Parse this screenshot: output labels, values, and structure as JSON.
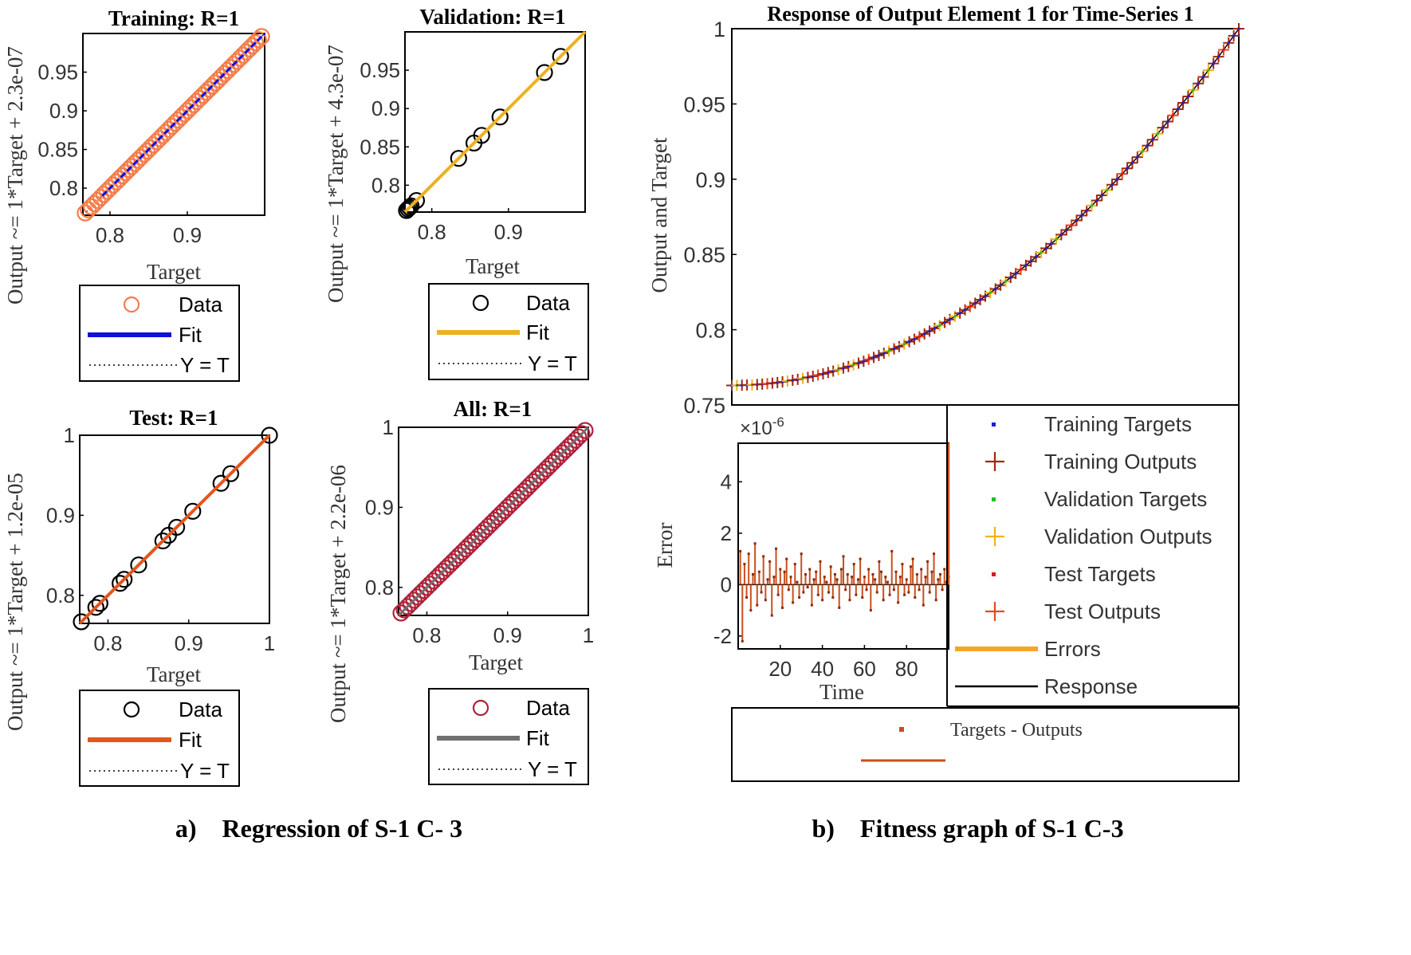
{
  "captions": {
    "left": "a) Regression of S-1 C- 3",
    "right": "b) Fitness graph of S-1 C-3"
  },
  "chart_data": [
    {
      "id": "training",
      "type": "scatter",
      "title": "Training: R=1",
      "xlabel": "Target",
      "ylabel": "Output ~= 1*Target + 2.3e-07",
      "xlim": [
        0.765,
        1.0
      ],
      "ylim": [
        0.765,
        1.0
      ],
      "xticks": [
        0.8,
        0.9
      ],
      "yticks": [
        0.8,
        0.85,
        0.9,
        0.95
      ],
      "data_color": "#f47c4a",
      "fit_color": "#1010d8",
      "legend": [
        "Data",
        "Fit",
        "Y = T"
      ]
    },
    {
      "id": "validation",
      "type": "scatter",
      "title": "Validation: R=1",
      "xlabel": "Target",
      "ylabel": "Output ~= 1*Target + 4.3e-07",
      "xlim": [
        0.765,
        1.0
      ],
      "ylim": [
        0.765,
        1.0
      ],
      "xticks": [
        0.8,
        0.9
      ],
      "yticks": [
        0.8,
        0.85,
        0.9,
        0.95
      ],
      "points": [
        0.767,
        0.769,
        0.771,
        0.773,
        0.78,
        0.835,
        0.855,
        0.865,
        0.889,
        0.947,
        0.968
      ],
      "data_color": "#000000",
      "fit_color": "#edb120",
      "legend": [
        "Data",
        "Fit",
        "Y = T"
      ]
    },
    {
      "id": "test",
      "type": "scatter",
      "title": "Test: R=1",
      "xlabel": "Target",
      "ylabel": "Output ~= 1*Target + 1.2e-05",
      "xlim": [
        0.765,
        1.0
      ],
      "ylim": [
        0.765,
        1.0
      ],
      "xticks": [
        0.8,
        0.9,
        1
      ],
      "yticks": [
        0.8,
        0.9,
        1
      ],
      "points": [
        0.767,
        0.785,
        0.79,
        0.815,
        0.82,
        0.838,
        0.868,
        0.875,
        0.885,
        0.905,
        0.94,
        0.952,
        1.0
      ],
      "data_color": "#000000",
      "fit_color": "#e2561c",
      "legend": [
        "Data",
        "Fit",
        "Y = T"
      ]
    },
    {
      "id": "all",
      "type": "scatter",
      "title": "All: R=1",
      "xlabel": "Target",
      "ylabel": "Output ~= 1*Target + 2.2e-06",
      "xlim": [
        0.765,
        1.0
      ],
      "ylim": [
        0.765,
        1.0
      ],
      "xticks": [
        0.8,
        0.9,
        1
      ],
      "yticks": [
        0.8,
        0.9,
        1
      ],
      "data_color": "#b0223b",
      "fit_color": "#707070",
      "legend": [
        "Data",
        "Fit",
        "Y = T"
      ]
    },
    {
      "id": "response",
      "type": "line",
      "title": "Response of Output Element 1 for Time-Series 1",
      "xlabel": "",
      "ylabel": "Output and Target",
      "xlim": [
        0,
        100
      ],
      "ylim": [
        0.75,
        1.0
      ],
      "yticks": [
        0.75,
        0.8,
        0.85,
        0.9,
        0.95,
        1
      ],
      "curve": "y = 0.763 + 0.237 * (t/100)^2",
      "series": [
        {
          "name": "Training Targets",
          "color": "#1f1fd8",
          "marker": "dot"
        },
        {
          "name": "Training Outputs",
          "color": "#a0280f",
          "marker": "plus"
        },
        {
          "name": "Validation Targets",
          "color": "#22c022",
          "marker": "dot"
        },
        {
          "name": "Validation Outputs",
          "color": "#f2b21b",
          "marker": "plus"
        },
        {
          "name": "Test Targets",
          "color": "#e01616",
          "marker": "dot"
        },
        {
          "name": "Test Outputs",
          "color": "#e8481a",
          "marker": "plus"
        },
        {
          "name": "Errors",
          "color": "#f5a623",
          "marker": "line"
        },
        {
          "name": "Response",
          "color": "#000000",
          "marker": "line"
        }
      ]
    },
    {
      "id": "error",
      "type": "line",
      "title": "",
      "xlabel": "Time",
      "ylabel": "Error",
      "exponent_label": "×10",
      "exponent_power": "-6",
      "xlim": [
        0,
        100
      ],
      "ylim": [
        -2.5,
        5.5
      ],
      "xticks": [
        20,
        40,
        60,
        80
      ],
      "yticks": [
        -2,
        0,
        2,
        4
      ],
      "values": [
        1.3,
        -2.2,
        0.8,
        -0.5,
        1.2,
        -1.0,
        0.4,
        1.6,
        -0.8,
        0.5,
        -0.3,
        1.1,
        -0.6,
        0.2,
        0.9,
        -1.2,
        0.3,
        1.4,
        -0.4,
        0.6,
        -0.9,
        0.5,
        1.0,
        -0.2,
        0.3,
        -0.7,
        0.8,
        0.1,
        -0.5,
        1.2,
        -0.3,
        0.4,
        -0.1,
        0.6,
        -0.8,
        0.2,
        0.5,
        -0.4,
        0.9,
        -0.6,
        0.3,
        0.1,
        -0.3,
        0.7,
        -0.5,
        0.4,
        0.2,
        -0.9,
        0.6,
        1.1,
        -0.2,
        0.4,
        -0.6,
        0.3,
        0.8,
        -0.4,
        0.2,
        1.0,
        -0.5,
        0.3,
        -0.2,
        0.6,
        -1.0,
        0.4,
        0.2,
        -0.3,
        0.9,
        0.5,
        -0.6,
        0.3,
        0.1,
        -0.4,
        1.3,
        -0.2,
        0.5,
        -0.7,
        0.3,
        0.8,
        -0.4,
        0.2,
        -0.3,
        0.7,
        1.0,
        -0.5,
        0.4,
        -0.2,
        0.6,
        -0.8,
        0.3,
        0.9,
        -0.3,
        0.5,
        1.2,
        -0.6,
        0.2,
        0.4,
        -0.2,
        0.6,
        0.1,
        0.3
      ],
      "legend": [
        "Targets - Outputs"
      ],
      "color": "#c8501e"
    }
  ]
}
